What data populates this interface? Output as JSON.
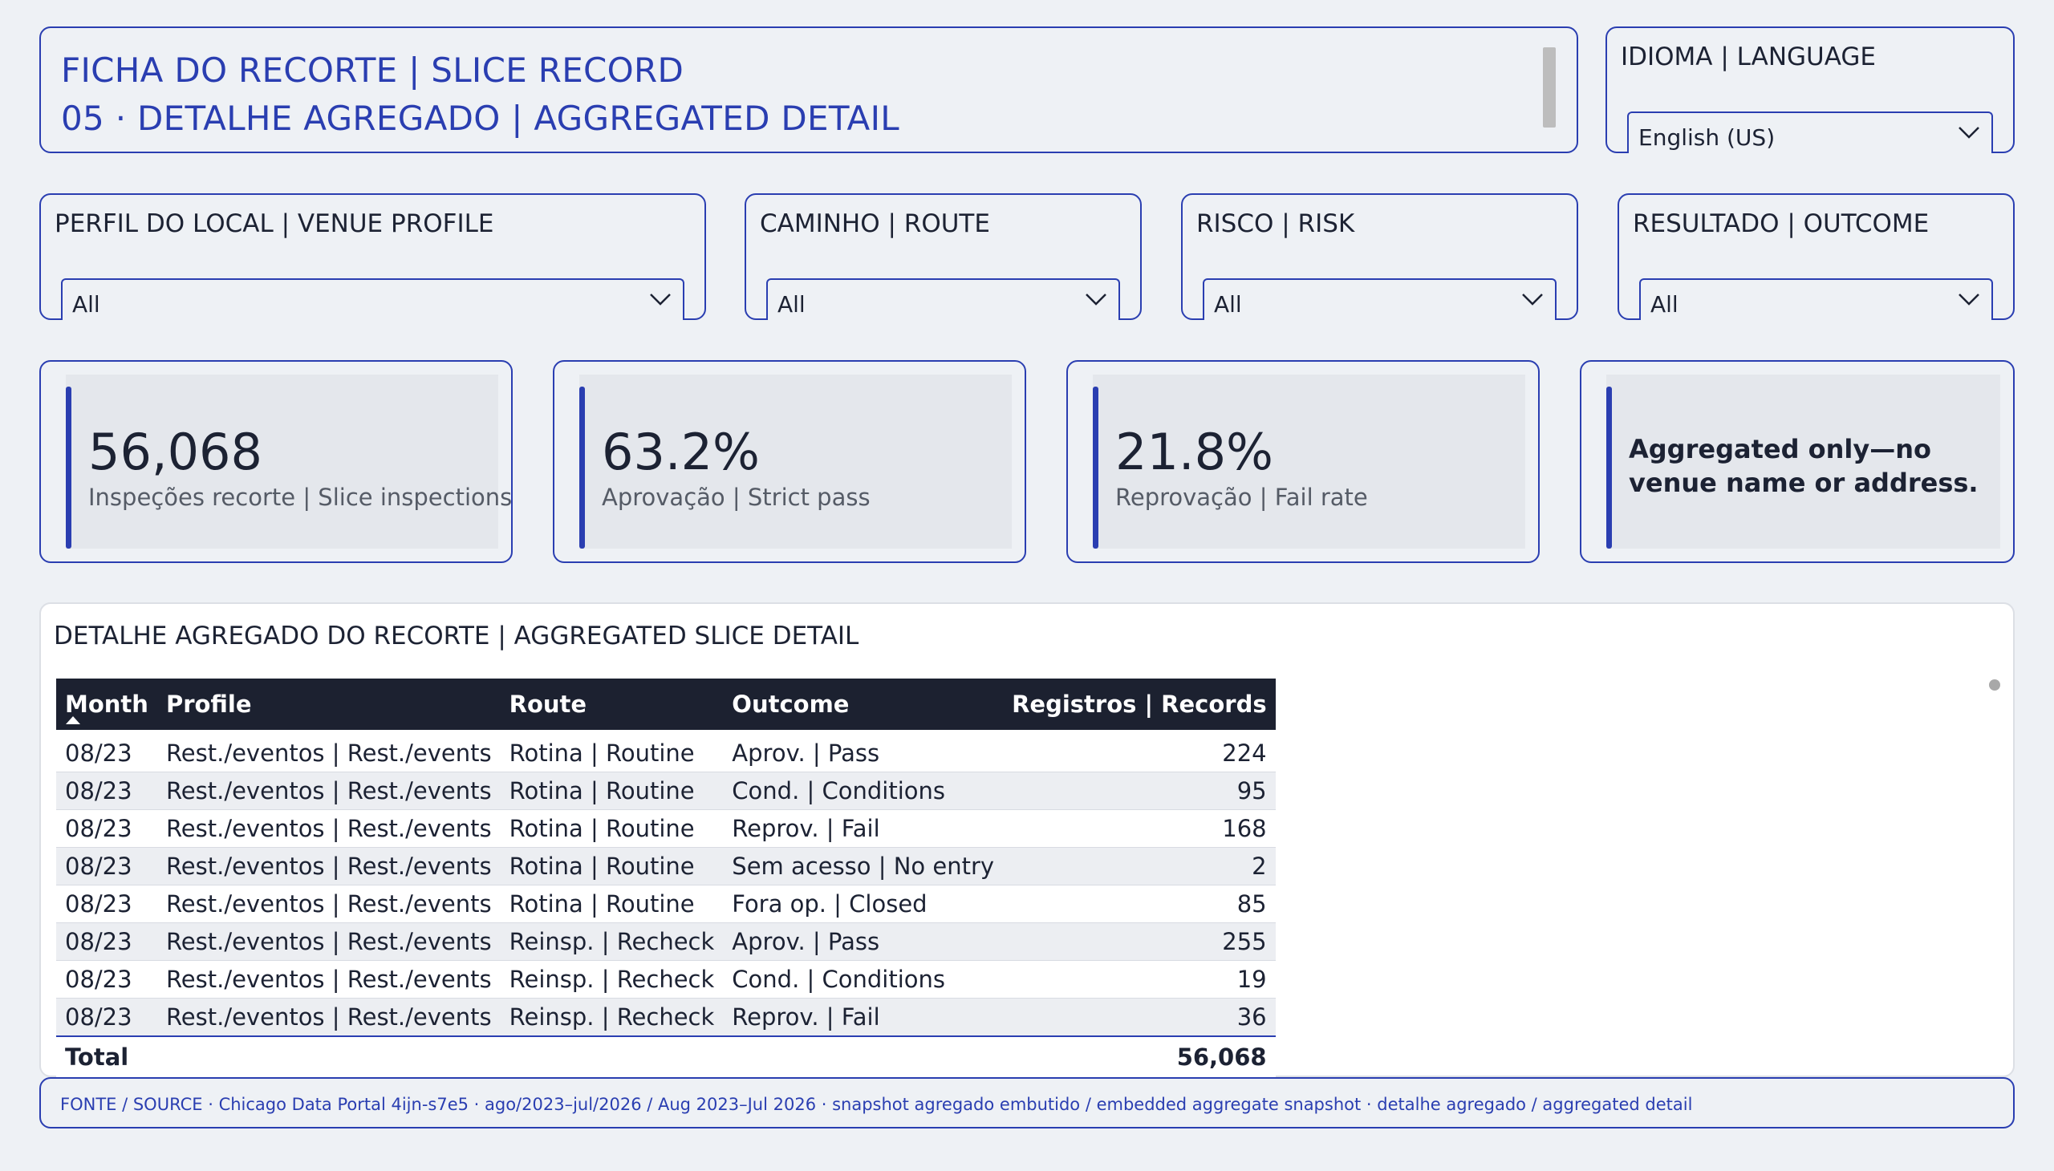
{
  "header": {
    "title_line_1": "FICHA DO RECORTE | SLICE RECORD",
    "title_line_2": "05 · DETALHE AGREGADO | AGGREGATED DETAIL"
  },
  "language": {
    "label": "IDIOMA | LANGUAGE",
    "value": "English (US)"
  },
  "filters": {
    "profile": {
      "label": "PERFIL DO LOCAL | VENUE PROFILE",
      "value": "All"
    },
    "route": {
      "label": "CAMINHO | ROUTE",
      "value": "All"
    },
    "risk": {
      "label": "RISCO | RISK",
      "value": "All"
    },
    "outcome": {
      "label": "RESULTADO | OUTCOME",
      "value": "All"
    }
  },
  "kpis": {
    "inspections": {
      "value": "56,068",
      "label": "Inspeções recorte | Slice inspections"
    },
    "pass": {
      "value": "63.2%",
      "label": "Aprovação | Strict pass"
    },
    "fail": {
      "value": "21.8%",
      "label": "Reprovação | Fail rate"
    },
    "note": "Aggregated only—no venue name or address."
  },
  "table": {
    "title": "DETALHE AGREGADO DO RECORTE | AGGREGATED SLICE DETAIL",
    "columns": [
      "Month",
      "Profile",
      "Route",
      "Outcome",
      "Registros | Records"
    ],
    "rows": [
      [
        "08/23",
        "Rest./eventos | Rest./events",
        "Rotina | Routine",
        "Aprov. | Pass",
        "224"
      ],
      [
        "08/23",
        "Rest./eventos | Rest./events",
        "Rotina | Routine",
        "Cond. | Conditions",
        "95"
      ],
      [
        "08/23",
        "Rest./eventos | Rest./events",
        "Rotina | Routine",
        "Reprov. | Fail",
        "168"
      ],
      [
        "08/23",
        "Rest./eventos | Rest./events",
        "Rotina | Routine",
        "Sem acesso | No entry",
        "2"
      ],
      [
        "08/23",
        "Rest./eventos | Rest./events",
        "Rotina | Routine",
        "Fora op. | Closed",
        "85"
      ],
      [
        "08/23",
        "Rest./eventos | Rest./events",
        "Reinsp. | Recheck",
        "Aprov. | Pass",
        "255"
      ],
      [
        "08/23",
        "Rest./eventos | Rest./events",
        "Reinsp. | Recheck",
        "Cond. | Conditions",
        "19"
      ],
      [
        "08/23",
        "Rest./eventos | Rest./events",
        "Reinsp. | Recheck",
        "Reprov. | Fail",
        "36"
      ]
    ],
    "total_label": "Total",
    "total_value": "56,068"
  },
  "footer": {
    "text": "FONTE / SOURCE · Chicago Data Portal 4ijn-s7e5 · ago/2023–jul/2026 / Aug 2023–Jul 2026 · snapshot agregado embutido / embedded aggregate snapshot · detalhe agregado / aggregated detail"
  },
  "colors": {
    "accent": "#2a3eb1",
    "header_bg": "#1c2130",
    "page_bg": "#eef1f5"
  }
}
